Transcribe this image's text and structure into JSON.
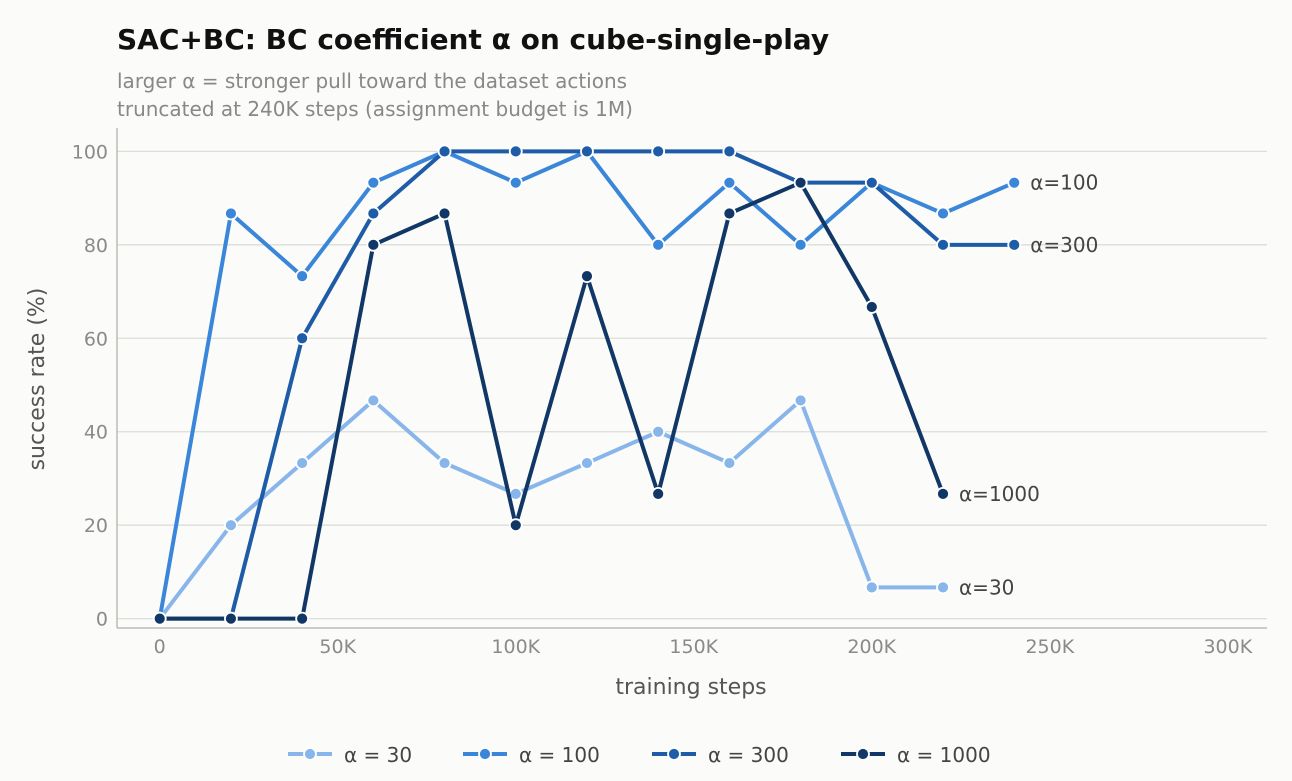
{
  "chart_data": {
    "type": "line",
    "title": "SAC+BC: BC coefficient α on cube-single-play",
    "subtitle_lines": [
      "larger α = stronger pull toward the dataset actions",
      "truncated at 240K steps (assignment budget is 1M)"
    ],
    "xlabel": "training steps",
    "ylabel": "success rate (%)",
    "xlim": [
      -12000,
      311000
    ],
    "ylim": [
      -2,
      105
    ],
    "x_ticks": [
      0,
      50000,
      100000,
      150000,
      200000,
      250000,
      300000
    ],
    "x_tick_labels": [
      "0",
      "50K",
      "100K",
      "150K",
      "200K",
      "250K",
      "300K"
    ],
    "y_ticks": [
      0,
      20,
      40,
      60,
      80,
      100
    ],
    "y_tick_labels": [
      "0",
      "20",
      "40",
      "60",
      "80",
      "100"
    ],
    "grid": "horizontal",
    "legend_position": "bottom",
    "series": [
      {
        "name": "α = 30",
        "end_label": "α=30",
        "color": "#88b6ea",
        "x": [
          0,
          20000,
          40000,
          60000,
          80000,
          100000,
          120000,
          140000,
          160000,
          180000,
          200000,
          220000
        ],
        "y": [
          0,
          20,
          33.3,
          46.7,
          33.3,
          26.7,
          33.3,
          40,
          33.3,
          46.7,
          6.7,
          6.7
        ]
      },
      {
        "name": "α = 100",
        "end_label": "α=100",
        "color": "#3a86d8",
        "x": [
          0,
          20000,
          40000,
          60000,
          80000,
          100000,
          120000,
          140000,
          160000,
          180000,
          200000,
          220000,
          240000
        ],
        "y": [
          0,
          86.7,
          73.3,
          93.3,
          100,
          93.3,
          100,
          80,
          93.3,
          80,
          93.3,
          86.7,
          93.3
        ]
      },
      {
        "name": "α = 300",
        "end_label": "α=300",
        "color": "#1f5ca8",
        "x": [
          0,
          20000,
          40000,
          60000,
          80000,
          100000,
          120000,
          140000,
          160000,
          180000,
          200000,
          220000,
          240000
        ],
        "y": [
          0,
          0,
          60,
          86.7,
          100,
          100,
          100,
          100,
          100,
          93.3,
          93.3,
          80,
          80
        ]
      },
      {
        "name": "α = 1000",
        "end_label": "α=1000",
        "color": "#113766",
        "x": [
          0,
          20000,
          40000,
          60000,
          80000,
          100000,
          120000,
          140000,
          160000,
          180000,
          200000,
          220000
        ],
        "y": [
          0,
          0,
          0,
          80,
          86.7,
          20,
          73.3,
          26.7,
          86.7,
          93.3,
          66.7,
          26.7
        ]
      }
    ]
  }
}
